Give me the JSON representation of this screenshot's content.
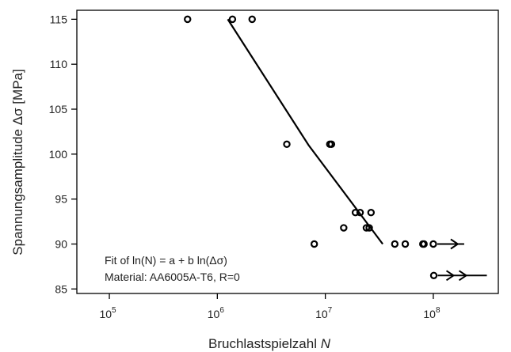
{
  "chart_data": {
    "type": "scatter",
    "title": "",
    "xlabel": "Bruchlastspielzahl",
    "xlabel_symbol": "N",
    "ylabel": "Spannungsamplitude Δσ [MPa]",
    "xscale": "log",
    "xlim": [
      50000,
      400000000
    ],
    "ylim": [
      84.5,
      116
    ],
    "x_ticks": [
      {
        "value": 100000,
        "base": "10",
        "exp": "5"
      },
      {
        "value": 1000000,
        "base": "10",
        "exp": "6"
      },
      {
        "value": 10000000,
        "base": "10",
        "exp": "7"
      },
      {
        "value": 100000000,
        "base": "10",
        "exp": "8"
      }
    ],
    "y_ticks": [
      85,
      90,
      95,
      100,
      105,
      110,
      115
    ],
    "grid": false,
    "points": [
      {
        "x": 530000,
        "y": 115
      },
      {
        "x": 1380000,
        "y": 115
      },
      {
        "x": 2100000,
        "y": 115
      },
      {
        "x": 4400000,
        "y": 101.1
      },
      {
        "x": 11000000,
        "y": 101.1
      },
      {
        "x": 11400000,
        "y": 101.1
      },
      {
        "x": 7900000,
        "y": 90
      },
      {
        "x": 14800000,
        "y": 91.8
      },
      {
        "x": 19000000,
        "y": 93.5
      },
      {
        "x": 21000000,
        "y": 93.5
      },
      {
        "x": 24000000,
        "y": 91.8
      },
      {
        "x": 25500000,
        "y": 91.8
      },
      {
        "x": 26500000,
        "y": 93.5
      },
      {
        "x": 44000000,
        "y": 90
      },
      {
        "x": 55000000,
        "y": 90
      },
      {
        "x": 80000000,
        "y": 90
      },
      {
        "x": 82000000,
        "y": 90
      },
      {
        "x": 100000000,
        "y": 90
      },
      {
        "x": 101000000,
        "y": 86.5
      }
    ],
    "runouts": [
      {
        "x": 100000000,
        "y": 90,
        "arrows": 1
      },
      {
        "x": 101000000,
        "y": 86.5,
        "arrows": 2
      }
    ],
    "fit_line": [
      {
        "x": 1250000,
        "y": 115
      },
      {
        "x": 7000000,
        "y": 101
      },
      {
        "x": 34000000,
        "y": 90
      }
    ],
    "annotations": [
      {
        "prefix": "Fit of ",
        "formula": "ln(N) = a + b ln(Δσ)"
      },
      {
        "text": "Material: AA6005A-T6, R=0"
      }
    ]
  }
}
